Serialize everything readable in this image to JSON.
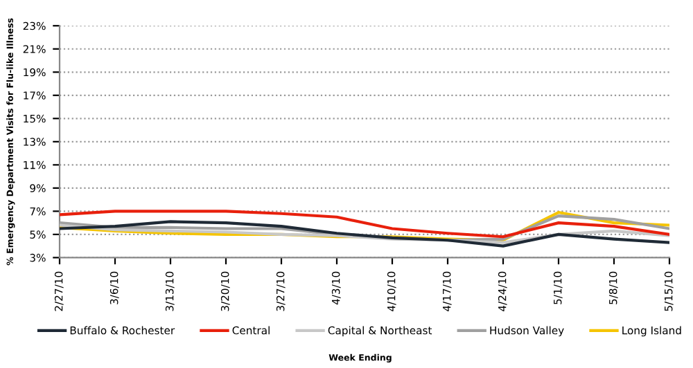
{
  "chart_data": {
    "type": "line",
    "xlabel": "Week Ending",
    "ylabel": "% Emergency Department Visits for Flu-like Illness",
    "categories": [
      "2/27/10",
      "3/6/10",
      "3/13/10",
      "3/20/10",
      "3/27/10",
      "4/3/10",
      "4/10/10",
      "4/17/10",
      "4/24/10",
      "5/1/10",
      "5/8/10",
      "5/15/10"
    ],
    "series": [
      {
        "name": "Buffalo & Rochester",
        "color": "#1f2a36",
        "values": [
          5.5,
          5.7,
          6.1,
          6.0,
          5.7,
          5.1,
          4.7,
          4.5,
          4.0,
          5.0,
          4.6,
          4.3
        ]
      },
      {
        "name": "Central",
        "color": "#e8200c",
        "values": [
          6.7,
          7.0,
          7.0,
          7.0,
          6.8,
          6.5,
          5.5,
          5.1,
          4.8,
          6.0,
          5.7,
          5.0
        ]
      },
      {
        "name": "Capital & Northeast",
        "color": "#c8c8c8",
        "values": [
          5.8,
          5.4,
          5.3,
          5.2,
          5.0,
          4.9,
          4.6,
          4.5,
          4.3,
          5.0,
          5.3,
          4.9
        ]
      },
      {
        "name": "Hudson Valley",
        "color": "#a0a0a0",
        "values": [
          6.0,
          5.6,
          5.6,
          5.5,
          5.5,
          5.0,
          4.7,
          4.5,
          4.6,
          6.6,
          6.3,
          5.5
        ]
      },
      {
        "name": "Long Island",
        "color": "#f5c400",
        "values": [
          5.6,
          5.3,
          5.1,
          5.0,
          5.0,
          4.8,
          4.8,
          4.6,
          4.5,
          6.9,
          6.0,
          5.8
        ]
      }
    ],
    "ylim": [
      3,
      23
    ],
    "yticks": [
      {
        "value": 3,
        "label": "3%"
      },
      {
        "value": 5,
        "label": "5%"
      },
      {
        "value": 7,
        "label": "7%"
      },
      {
        "value": 9,
        "label": "9%"
      },
      {
        "value": 11,
        "label": "11%"
      },
      {
        "value": 13,
        "label": "13%"
      },
      {
        "value": 15,
        "label": "15%"
      },
      {
        "value": 17,
        "label": "17%"
      },
      {
        "value": 19,
        "label": "19%"
      },
      {
        "value": 21,
        "label": "21%"
      },
      {
        "value": 23,
        "label": "23%"
      }
    ],
    "grid": "y",
    "legend": "bottom",
    "marker": "none",
    "line_style": "solid"
  }
}
